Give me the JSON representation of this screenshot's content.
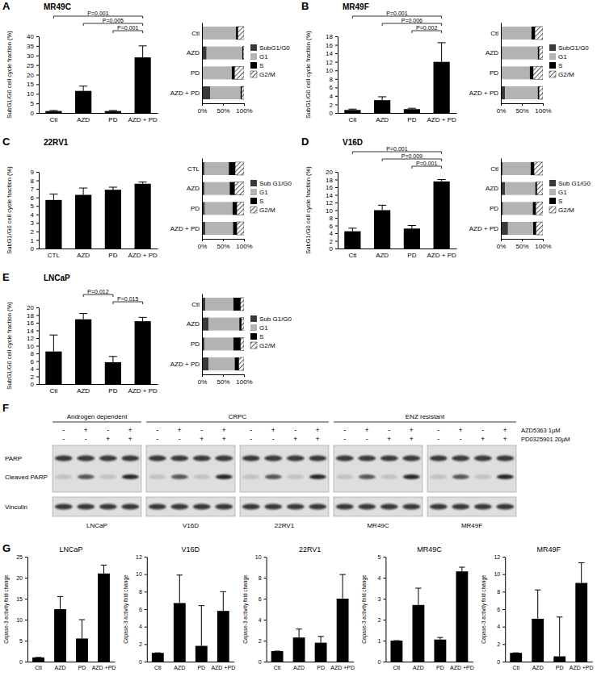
{
  "chart_data": [
    {
      "type": "bar",
      "panel": "A",
      "title": "MR49C",
      "y_label": "SubG1/G0 cell cycle fraction (%)",
      "categories": [
        "Ctl",
        "AZD",
        "PD",
        "AZD + PD"
      ],
      "values": [
        1,
        11.5,
        1,
        29
      ],
      "errors": [
        0.3,
        2.5,
        0.3,
        6
      ],
      "color": "#000000",
      "ylim": [
        0,
        40
      ],
      "yticks": [
        0,
        5,
        10,
        15,
        20,
        25,
        30,
        35,
        40
      ],
      "annotations": [
        {
          "text": "P=0.001",
          "between": [
            "Ctl",
            "AZD + PD"
          ]
        },
        {
          "text": "P=0.005",
          "between": [
            "AZD",
            "AZD + PD"
          ]
        },
        {
          "text": "P=0.001",
          "between": [
            "PD",
            "AZD + PD"
          ]
        }
      ]
    },
    {
      "type": "bar",
      "orientation": "horizontal",
      "stacked": true,
      "legend": "right",
      "categories": [
        "Ctl",
        "AZD",
        "PD",
        "AZD + PD"
      ],
      "series": [
        {
          "name": "SubG1/G0",
          "color": "#3a3a3a",
          "values": [
            1,
            11,
            1,
            20
          ]
        },
        {
          "name": "G1",
          "color": "#b3b3b3",
          "values": [
            80,
            85,
            70,
            72
          ]
        },
        {
          "name": "S",
          "color": "#000000",
          "values": [
            5,
            2,
            7,
            3
          ]
        },
        {
          "name": "G2/M",
          "color": "#ffffff",
          "values": [
            14,
            2,
            22,
            5
          ]
        }
      ],
      "xlim": [
        0,
        100
      ],
      "xticks": [
        {
          "value": 0,
          "label": "0%"
        },
        {
          "value": 50,
          "label": "50%"
        },
        {
          "value": 100,
          "label": "100%"
        }
      ]
    },
    {
      "type": "bar",
      "panel": "B",
      "title": "MR49F",
      "y_label": "SubG1/G0 cell cycle fraction (%)",
      "categories": [
        "Ctl",
        "AZD",
        "PD",
        "AZD + PD"
      ],
      "values": [
        0.7,
        3,
        0.9,
        12
      ],
      "errors": [
        0.2,
        0.8,
        0.2,
        4.5
      ],
      "color": "#000000",
      "ylim": [
        0,
        18
      ],
      "yticks": [
        0,
        2,
        4,
        6,
        8,
        10,
        12,
        14,
        16,
        18
      ],
      "annotations": [
        {
          "text": "P=0.001",
          "between": [
            "Ctl",
            "AZD + PD"
          ]
        },
        {
          "text": "P=0.006",
          "between": [
            "AZD",
            "AZD + PD"
          ]
        },
        {
          "text": "P=0.002",
          "between": [
            "PD",
            "AZD + PD"
          ]
        }
      ]
    },
    {
      "type": "bar",
      "orientation": "horizontal",
      "stacked": true,
      "legend": "right",
      "categories": [
        "Ctl",
        "AZD",
        "PD",
        "AZD + PD"
      ],
      "series": [
        {
          "name": "SubG1/G0",
          "color": "#3a3a3a",
          "values": [
            1,
            3,
            1,
            10
          ]
        },
        {
          "name": "G1",
          "color": "#b3b3b3",
          "values": [
            72,
            85,
            68,
            78
          ]
        },
        {
          "name": "S",
          "color": "#000000",
          "values": [
            8,
            3,
            8,
            3
          ]
        },
        {
          "name": "G2/M",
          "color": "#ffffff",
          "values": [
            19,
            9,
            23,
            9
          ]
        }
      ],
      "xlim": [
        0,
        100
      ],
      "xticks": [
        {
          "value": 0,
          "label": "0%"
        },
        {
          "value": 50,
          "label": "50%"
        },
        {
          "value": 100,
          "label": "100%"
        }
      ]
    },
    {
      "type": "bar",
      "panel": "C",
      "title": "22RV1",
      "y_label": "SubG1/G0 cell cycle fraction (%)",
      "categories": [
        "CTL",
        "AZD",
        "PD",
        "AZD + PD"
      ],
      "values": [
        5.7,
        6.3,
        6.9,
        7.6
      ],
      "errors": [
        0.7,
        0.8,
        0.3,
        0.2
      ],
      "color": "#000000",
      "ylim": [
        0,
        9
      ],
      "yticks": [
        0,
        1,
        2,
        3,
        4,
        5,
        6,
        7,
        8,
        9
      ]
    },
    {
      "type": "bar",
      "orientation": "horizontal",
      "stacked": true,
      "legend": "right",
      "categories": [
        "CTL",
        "AZD",
        "PD",
        "AZD + PD"
      ],
      "series": [
        {
          "name": "Sub G1/G0",
          "color": "#3a3a3a",
          "values": [
            6,
            6,
            7,
            8
          ]
        },
        {
          "name": "G1",
          "color": "#b3b3b3",
          "values": [
            58,
            60,
            66,
            66
          ]
        },
        {
          "name": "S",
          "color": "#000000",
          "values": [
            15,
            12,
            10,
            9
          ]
        },
        {
          "name": "G2/M",
          "color": "#ffffff",
          "values": [
            21,
            22,
            17,
            17
          ]
        }
      ],
      "xlim": [
        0,
        100
      ],
      "xticks": [
        {
          "value": 0,
          "label": "0%"
        },
        {
          "value": 50,
          "label": "50%"
        },
        {
          "value": 100,
          "label": "100%"
        }
      ]
    },
    {
      "type": "bar",
      "panel": "D",
      "title": "V16D",
      "y_label": "SubG1/G0 cell cycle fraction (%)",
      "categories": [
        "Ctl",
        "AZD",
        "PD",
        "AZD + PD"
      ],
      "values": [
        4.5,
        10,
        5.2,
        17.5
      ],
      "errors": [
        0.8,
        1.3,
        0.8,
        0.5
      ],
      "color": "#000000",
      "ylim": [
        0,
        20
      ],
      "yticks": [
        0,
        2,
        4,
        6,
        8,
        10,
        12,
        14,
        16,
        18,
        20
      ],
      "annotations": [
        {
          "text": "P=0.001",
          "between": [
            "Ctl",
            "AZD + PD"
          ]
        },
        {
          "text": "P=0.009",
          "between": [
            "AZD",
            "AZD + PD"
          ]
        },
        {
          "text": "P=0.001",
          "between": [
            "PD",
            "AZD + PD"
          ]
        }
      ]
    },
    {
      "type": "bar",
      "orientation": "horizontal",
      "stacked": true,
      "legend": "right",
      "categories": [
        "Ctl",
        "AZD",
        "PD",
        "AZD + PD"
      ],
      "series": [
        {
          "name": "Sub G1/G0",
          "color": "#3a3a3a",
          "values": [
            4,
            10,
            5,
            17
          ]
        },
        {
          "name": "G1",
          "color": "#b3b3b3",
          "values": [
            67,
            72,
            71,
            60
          ]
        },
        {
          "name": "S",
          "color": "#000000",
          "values": [
            8,
            4,
            7,
            7
          ]
        },
        {
          "name": "G2/M",
          "color": "#ffffff",
          "values": [
            21,
            14,
            17,
            16
          ]
        }
      ],
      "xlim": [
        0,
        100
      ],
      "xticks": [
        {
          "value": 0,
          "label": "0%"
        },
        {
          "value": 50,
          "label": "50%"
        },
        {
          "value": 100,
          "label": "100%"
        }
      ]
    },
    {
      "type": "bar",
      "panel": "E",
      "title": "LNCaP",
      "y_label": "SubG1/G0 cell cycle fraction (%)",
      "categories": [
        "Ctl",
        "AZD",
        "PD",
        "AZD + PD"
      ],
      "values": [
        8.5,
        16.9,
        5.7,
        16.4
      ],
      "errors": [
        4.3,
        1.5,
        1.5,
        1.0
      ],
      "color": "#000000",
      "ylim": [
        0,
        20
      ],
      "yticks": [
        0,
        2,
        4,
        6,
        8,
        10,
        12,
        14,
        16,
        18,
        20
      ],
      "annotations": [
        {
          "text": "P=0.012",
          "between": [
            "AZD",
            "PD"
          ]
        },
        {
          "text": "P=0.015",
          "between": [
            "PD",
            "AZD + PD"
          ]
        }
      ]
    },
    {
      "type": "bar",
      "orientation": "horizontal",
      "stacked": true,
      "legend": "right",
      "categories": [
        "Ctl",
        "AZD",
        "PD",
        "AZD + PD"
      ],
      "series": [
        {
          "name": "Sub G1/G0",
          "color": "#3a3a3a",
          "values": [
            8,
            16,
            6,
            16
          ]
        },
        {
          "name": "G1",
          "color": "#b3b3b3",
          "values": [
            67,
            73,
            69,
            62
          ]
        },
        {
          "name": "S",
          "color": "#000000",
          "values": [
            17,
            5,
            17,
            10
          ]
        },
        {
          "name": "G2/M",
          "color": "#ffffff",
          "values": [
            8,
            6,
            8,
            12
          ]
        }
      ],
      "xlim": [
        0,
        100
      ],
      "xticks": [
        {
          "value": 0,
          "label": "0%"
        },
        {
          "value": 50,
          "label": "50%"
        },
        {
          "value": 100,
          "label": "100%"
        }
      ]
    },
    {
      "type": "bar",
      "panel": "G",
      "title": "LNCaP",
      "y_label": "Capase-3 activity fold change",
      "categories": [
        "Ctl",
        "AZD",
        "PD",
        "AZD +PD"
      ],
      "values": [
        1,
        12.5,
        5.5,
        21
      ],
      "errors": [
        0,
        3,
        4.5,
        2
      ],
      "color": "#000000",
      "ylim": [
        0,
        25
      ],
      "yticks": [
        0,
        5,
        10,
        15,
        20,
        25
      ]
    },
    {
      "type": "bar",
      "title": "V16D",
      "y_label": "Capase-3 activity fold change",
      "categories": [
        "Ctl",
        "AZD",
        "PD",
        "AZD +PD"
      ],
      "values": [
        1,
        6.7,
        1.8,
        5.8
      ],
      "errors": [
        0,
        3.2,
        4.6,
        2.2
      ],
      "color": "#000000",
      "ylim": [
        0,
        12
      ],
      "yticks": [
        0,
        2,
        4,
        6,
        8,
        10,
        12
      ]
    },
    {
      "type": "bar",
      "title": "22RV1",
      "y_label": "Capase-3 activity fold change",
      "categories": [
        "Ctl",
        "AZD",
        "PD",
        "AZD +PD"
      ],
      "values": [
        1,
        2.3,
        1.8,
        6
      ],
      "errors": [
        0,
        0.8,
        0.6,
        2.3
      ],
      "color": "#000000",
      "ylim": [
        0,
        10
      ],
      "yticks": [
        0,
        2,
        4,
        6,
        8,
        10
      ]
    },
    {
      "type": "bar",
      "title": "MR49C",
      "y_label": "Capase-3 activity fold change",
      "categories": [
        "Ctl",
        "AZD",
        "PD",
        "AZD +PD"
      ],
      "values": [
        1,
        2.7,
        1.05,
        4.3
      ],
      "errors": [
        0,
        0.8,
        0.1,
        0.2
      ],
      "color": "#000000",
      "ylim": [
        0,
        5
      ],
      "yticks": [
        0,
        1,
        2,
        3,
        4,
        5
      ]
    },
    {
      "type": "bar",
      "title": "MR49F",
      "y_label": "Capase-3 activity fold change",
      "categories": [
        "Ctl",
        "AZD",
        "PD",
        "AZD +PD"
      ],
      "values": [
        1,
        4.9,
        0.6,
        9
      ],
      "errors": [
        0,
        3.3,
        4.5,
        2.3
      ],
      "color": "#000000",
      "ylim": [
        0,
        12
      ],
      "yticks": [
        0,
        2,
        4,
        6,
        8,
        10,
        12
      ]
    }
  ],
  "blot": {
    "panel": "F",
    "groups": [
      {
        "label": "Androgen dependent",
        "cell_lines": [
          "LNCaP"
        ]
      },
      {
        "label": "CRPC",
        "cell_lines": [
          "V16D",
          "22RV1"
        ]
      },
      {
        "label": "ENZ resistant",
        "cell_lines": [
          "MR49C",
          "MR49F"
        ]
      }
    ],
    "treatments": [
      {
        "label": "AZD5363 1µM",
        "signs": [
          "-",
          "+",
          "-",
          "+"
        ]
      },
      {
        "label": "PD0325901 20µM",
        "signs": [
          "-",
          "-",
          "+",
          "+"
        ]
      }
    ],
    "bands": [
      "PARP",
      "Cleaved PARP",
      "Vinculin"
    ]
  }
}
